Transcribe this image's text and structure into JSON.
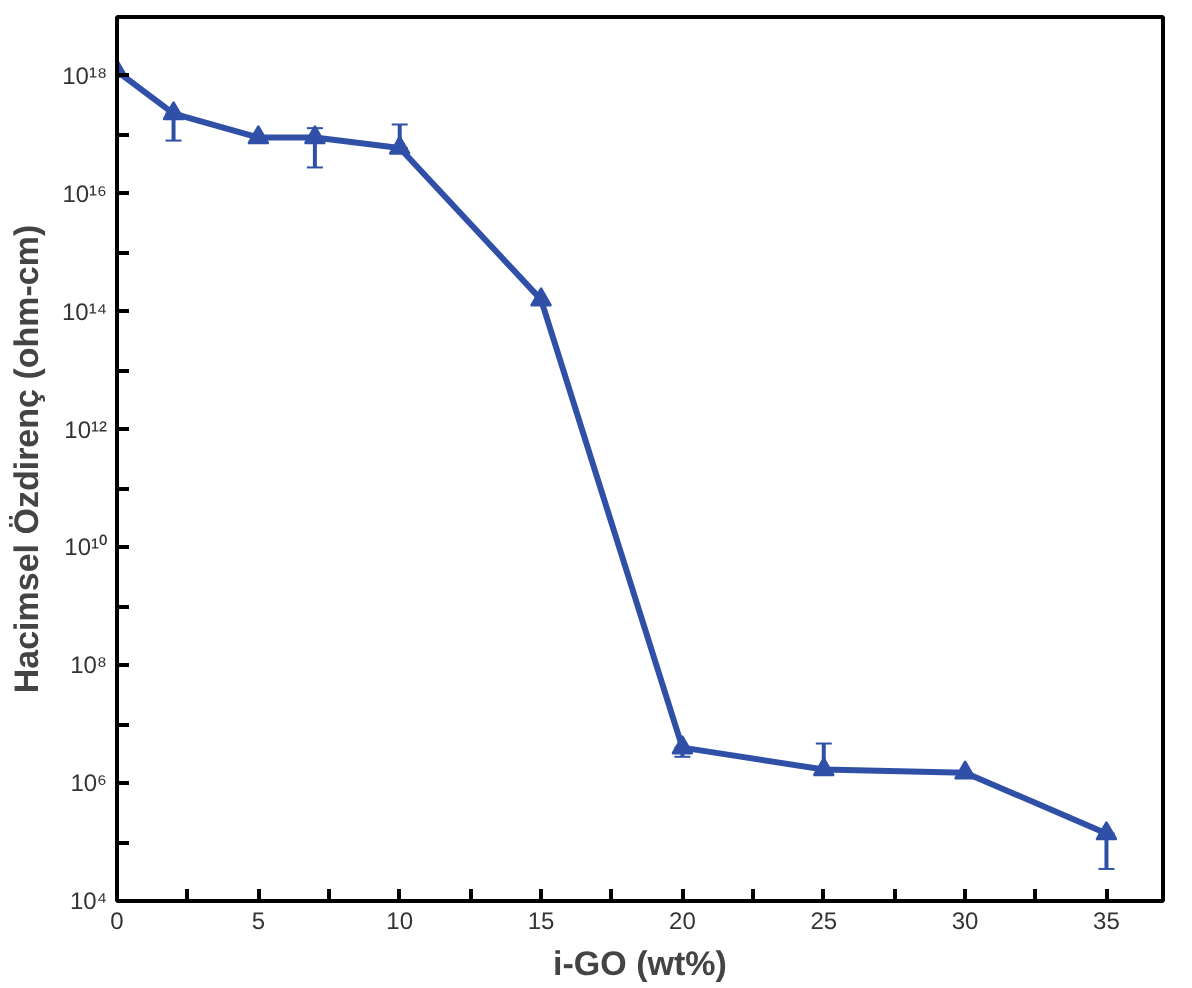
{
  "chart_data": {
    "type": "line",
    "xlabel": "i-GO (wt%)",
    "ylabel": "Hacimsel Özdirenç (ohm-cm)",
    "log": "y",
    "marker": "triangle",
    "line_style": "solid",
    "grid": false,
    "x": [
      0,
      2,
      5,
      7,
      10,
      15,
      20,
      25,
      30,
      35
    ],
    "series": [
      {
        "color": "#3050a8",
        "values": [
          1.2e+18,
          2.3e+17,
          9e+16,
          9e+16,
          6e+16,
          160000000000000.0,
          4000000.0,
          1700000.0,
          1500000.0,
          140000.0
        ],
        "errors": [
          null,
          [
            8e+16,
            2.3e+17
          ],
          null,
          [
            2.8e+16,
            1.3e+17
          ],
          [
            6e+16,
            1.5e+17
          ],
          null,
          [
            2800000.0,
            4000000.0
          ],
          [
            1700000.0,
            4700000.0
          ],
          null,
          [
            35000.0,
            140000.0
          ]
        ]
      }
    ],
    "xlim": [
      0,
      37
    ],
    "xticks": [
      0,
      {
        "value": 2.5,
        "label": null
      },
      5,
      {
        "value": 7.5,
        "label": null
      },
      10,
      {
        "value": 12.5,
        "label": null
      },
      15,
      {
        "value": 17.5,
        "label": null
      },
      20,
      {
        "value": 22.5,
        "label": null
      },
      25,
      {
        "value": 27.5,
        "label": null
      },
      30,
      {
        "value": 32.5,
        "label": null
      },
      35
    ],
    "ylim": [
      10000.0,
      1e+19
    ],
    "yticks": [
      {
        "value": 10000.0,
        "label": "10⁴"
      },
      {
        "value": 100000.0,
        "label": null
      },
      {
        "value": 1000000.0,
        "label": "10⁶"
      },
      {
        "value": 10000000.0,
        "label": null
      },
      {
        "value": 100000000.0,
        "label": "10⁸"
      },
      {
        "value": 1000000000.0,
        "label": null
      },
      {
        "value": 10000000000.0,
        "label": "10¹⁰"
      },
      {
        "value": 100000000000.0,
        "label": null
      },
      {
        "value": 1000000000000.0,
        "label": "10¹²"
      },
      {
        "value": 10000000000000.0,
        "label": null
      },
      {
        "value": 100000000000000.0,
        "label": "10¹⁴"
      },
      {
        "value": 1000000000000000.0,
        "label": null
      },
      {
        "value": 1e+16,
        "label": "10¹⁶"
      },
      {
        "value": 1e+17,
        "label": null
      },
      {
        "value": 1e+18,
        "label": "10¹⁸"
      }
    ]
  }
}
